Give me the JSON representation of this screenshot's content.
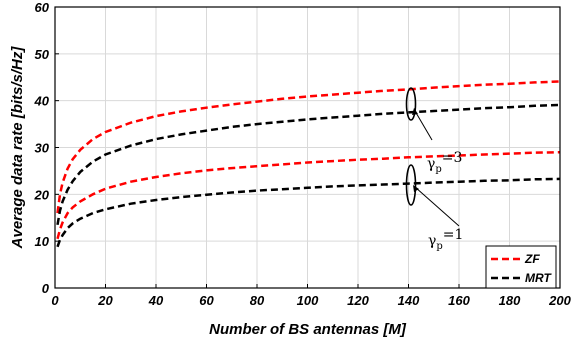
{
  "chart_data": {
    "type": "line",
    "xlabel": "Number of BS antennas [M]",
    "ylabel": "Average data rate [bits/s/Hz]",
    "xlim": [
      0,
      200
    ],
    "ylim": [
      0,
      60
    ],
    "xticks": [
      0,
      20,
      40,
      60,
      80,
      100,
      120,
      140,
      160,
      180,
      200
    ],
    "yticks": [
      0,
      10,
      20,
      30,
      40,
      50,
      60
    ],
    "grid": true,
    "legend_position": "bottom-right",
    "legend": [
      {
        "label": "ZF",
        "color": "#ff0000",
        "style": "dashed"
      },
      {
        "label": "MRT",
        "color": "#000000",
        "style": "dashed"
      }
    ],
    "series": [
      {
        "name": "ZF",
        "group": "γp=3",
        "color": "#ff0000",
        "x": [
          1,
          2,
          3,
          5,
          7,
          10,
          15,
          20,
          30,
          40,
          50,
          60,
          70,
          80,
          90,
          100,
          110,
          120,
          130,
          140,
          150,
          160,
          170,
          180,
          190,
          200
        ],
        "y": [
          16.0,
          20.0,
          22.5,
          25.5,
          27.5,
          29.5,
          31.8,
          33.3,
          35.3,
          36.7,
          37.7,
          38.5,
          39.2,
          39.8,
          40.4,
          40.9,
          41.3,
          41.7,
          42.1,
          42.4,
          42.8,
          43.1,
          43.4,
          43.6,
          43.9,
          44.1
        ]
      },
      {
        "name": "MRT",
        "group": "γp=3",
        "color": "#000000",
        "x": [
          1,
          2,
          3,
          5,
          7,
          10,
          15,
          20,
          30,
          40,
          50,
          60,
          70,
          80,
          90,
          100,
          110,
          120,
          130,
          140,
          150,
          160,
          170,
          180,
          190,
          200
        ],
        "y": [
          13.5,
          16.5,
          18.5,
          21.0,
          22.8,
          24.8,
          27.0,
          28.5,
          30.4,
          31.8,
          32.8,
          33.6,
          34.4,
          35.0,
          35.5,
          36.0,
          36.4,
          36.8,
          37.2,
          37.5,
          37.8,
          38.1,
          38.4,
          38.6,
          38.9,
          39.1
        ]
      },
      {
        "name": "ZF",
        "group": "γp=1",
        "color": "#ff0000",
        "x": [
          1,
          2,
          3,
          5,
          7,
          10,
          15,
          20,
          30,
          40,
          50,
          60,
          70,
          80,
          90,
          100,
          110,
          120,
          130,
          140,
          150,
          160,
          170,
          180,
          190,
          200
        ],
        "y": [
          10.5,
          12.5,
          14.0,
          16.0,
          17.2,
          18.5,
          20.0,
          21.2,
          22.7,
          23.7,
          24.5,
          25.1,
          25.6,
          26.0,
          26.4,
          26.8,
          27.1,
          27.4,
          27.6,
          27.9,
          28.1,
          28.3,
          28.5,
          28.7,
          28.9,
          29.0
        ]
      },
      {
        "name": "MRT",
        "group": "γp=1",
        "color": "#000000",
        "x": [
          1,
          2,
          3,
          5,
          7,
          10,
          15,
          20,
          30,
          40,
          50,
          60,
          70,
          80,
          90,
          100,
          110,
          120,
          130,
          140,
          150,
          160,
          170,
          180,
          190,
          200
        ],
        "y": [
          8.8,
          10.3,
          11.3,
          12.8,
          13.8,
          14.8,
          16.0,
          16.8,
          18.0,
          18.8,
          19.4,
          19.9,
          20.4,
          20.8,
          21.1,
          21.4,
          21.7,
          21.9,
          22.1,
          22.3,
          22.5,
          22.7,
          22.9,
          23.0,
          23.2,
          23.3
        ]
      }
    ],
    "annotations": [
      {
        "base": "γ",
        "sub": "p",
        "value": "=3"
      },
      {
        "base": "γ",
        "sub": "p",
        "value": "=1"
      }
    ]
  }
}
